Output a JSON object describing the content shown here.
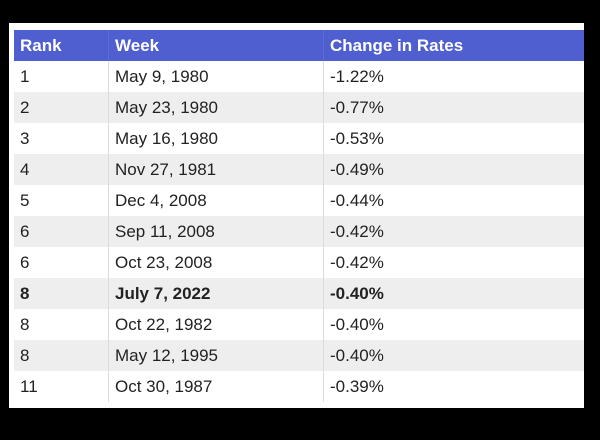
{
  "table": {
    "headers": [
      "Rank",
      "Week",
      "Change in Rates"
    ],
    "rows": [
      {
        "rank": "1",
        "week": "May 9, 1980",
        "change": "-1.22%"
      },
      {
        "rank": "2",
        "week": "May 23, 1980",
        "change": "-0.77%"
      },
      {
        "rank": "3",
        "week": "May 16, 1980",
        "change": "-0.53%"
      },
      {
        "rank": "4",
        "week": "Nov 27, 1981",
        "change": "-0.49%"
      },
      {
        "rank": "5",
        "week": "Dec 4, 2008",
        "change": "-0.44%"
      },
      {
        "rank": "6",
        "week": "Sep 11, 2008",
        "change": "-0.42%"
      },
      {
        "rank": "6",
        "week": "Oct 23, 2008",
        "change": "-0.42%"
      },
      {
        "rank": "8",
        "week": "July 7, 2022",
        "change": "-0.40%"
      },
      {
        "rank": "8",
        "week": "Oct 22, 1982",
        "change": "-0.40%"
      },
      {
        "rank": "8",
        "week": "May 12, 1995",
        "change": "-0.40%"
      },
      {
        "rank": "11",
        "week": "Oct 30, 1987",
        "change": "-0.39%"
      }
    ],
    "highlight_row_index": 7
  },
  "colors": {
    "header_bg": "#4f5fd0",
    "stripe": "#eeeeee",
    "page_bg": "#000000"
  }
}
